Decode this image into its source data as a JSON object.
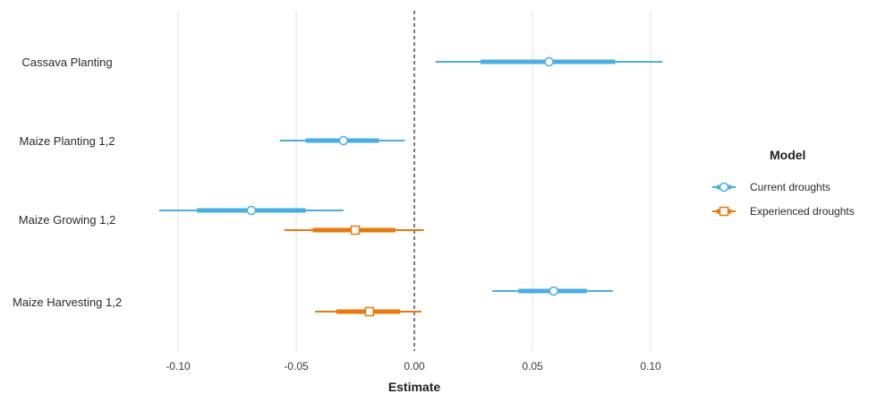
{
  "chart_data": {
    "type": "scatter",
    "subtype": "coefficient-plot",
    "xlabel": "Estimate",
    "xlim": [
      -0.11,
      0.107
    ],
    "x_ticks": [
      -0.1,
      -0.05,
      0.0,
      0.05,
      0.1
    ],
    "x_tick_labels": [
      "-0.10",
      "-0.05",
      "0.00",
      "0.05",
      "0.10"
    ],
    "reference_line": 0,
    "grid": "vertical-major",
    "categories": [
      "Cassava Planting",
      "Maize Planting 1,2",
      "Maize Growing 1,2",
      "Maize Harvesting 1,2"
    ],
    "legend": {
      "title": "Model",
      "position": "right"
    },
    "series": [
      {
        "name": "Current droughts",
        "color": "#4aaee3",
        "marker": "circle",
        "points": [
          {
            "category": "Cassava Planting",
            "estimate": 0.057,
            "inner": [
              0.028,
              0.085
            ],
            "outer": [
              0.009,
              0.105
            ]
          },
          {
            "category": "Maize Planting 1,2",
            "estimate": -0.03,
            "inner": [
              -0.046,
              -0.015
            ],
            "outer": [
              -0.057,
              -0.004
            ]
          },
          {
            "category": "Maize Growing 1,2",
            "estimate": -0.069,
            "inner": [
              -0.092,
              -0.046
            ],
            "outer": [
              -0.108,
              -0.03
            ]
          },
          {
            "category": "Maize Harvesting 1,2",
            "estimate": 0.059,
            "inner": [
              0.044,
              0.073
            ],
            "outer": [
              0.033,
              0.084
            ]
          }
        ]
      },
      {
        "name": "Experienced droughts",
        "color": "#e8790e",
        "marker": "square",
        "points": [
          {
            "category": "Maize Growing 1,2",
            "estimate": -0.025,
            "inner": [
              -0.043,
              -0.008
            ],
            "outer": [
              -0.055,
              0.004
            ]
          },
          {
            "category": "Maize Harvesting 1,2",
            "estimate": -0.019,
            "inner": [
              -0.033,
              -0.006
            ],
            "outer": [
              -0.042,
              0.003
            ]
          }
        ]
      }
    ]
  }
}
